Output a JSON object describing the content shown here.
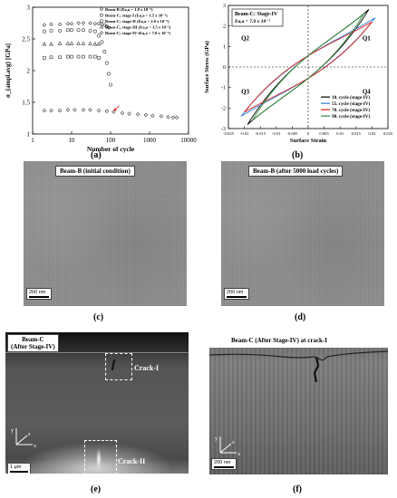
{
  "panels": {
    "a": "(a)",
    "b": "(b)",
    "c": "(c)",
    "d": "(d)",
    "e": "(e)",
    "f": "(f)"
  },
  "chart_data": [
    {
      "type": "scatter",
      "ylabel": "σ_{ampl.avg} [GPa]",
      "xlabel": "Number of cycle",
      "xscale": "log",
      "xlim": [
        1,
        10000
      ],
      "ylim": [
        1,
        3
      ],
      "xticks": [
        "1",
        "10",
        "100",
        "1000",
        "10000"
      ],
      "yticks": [
        "1",
        "1.5",
        "2",
        "2.5",
        "3"
      ],
      "legend_position": "top-right",
      "series": [
        {
          "name": "Beam-B (Ea,a = 1.8 x 10⁻³)",
          "marker": "diamond",
          "x": [
            2,
            3,
            5,
            8,
            12,
            20,
            30,
            50,
            80,
            120,
            200,
            300,
            500,
            800,
            1200,
            2000,
            3000,
            4000,
            5000
          ],
          "y": [
            1.37,
            1.37,
            1.37,
            1.38,
            1.38,
            1.38,
            1.38,
            1.37,
            1.36,
            1.35,
            1.33,
            1.32,
            1.31,
            1.3,
            1.29,
            1.28,
            1.27,
            1.26,
            1.26
          ]
        },
        {
          "name": "Beam-C; stage-I (Ea,a = 1.5 x 10⁻³)",
          "marker": "circle",
          "x": [
            2,
            3,
            5,
            8,
            10,
            15,
            20,
            30,
            40,
            50,
            60,
            70,
            80,
            90,
            100
          ],
          "y": [
            2.62,
            2.63,
            2.63,
            2.64,
            2.64,
            2.64,
            2.64,
            2.63,
            2.62,
            2.55,
            2.45,
            2.3,
            2.12,
            1.95,
            1.78
          ]
        },
        {
          "name": "Beam-C; stage-II (Ea,a = 2.0 x 10⁻³)",
          "marker": "square",
          "x": [
            2,
            3,
            5,
            8,
            10,
            15,
            20,
            30,
            40,
            50
          ],
          "y": [
            2.2,
            2.21,
            2.21,
            2.22,
            2.22,
            2.22,
            2.22,
            2.22,
            2.22,
            2.2
          ]
        },
        {
          "name": "Beam-C; stage-III (Ea,a = 3.5 x 10⁻³)",
          "marker": "triangle",
          "x": [
            2,
            3,
            5,
            8,
            10,
            15,
            20,
            30,
            40,
            50
          ],
          "y": [
            2.42,
            2.42,
            2.43,
            2.43,
            2.43,
            2.43,
            2.43,
            2.43,
            2.42,
            2.42
          ]
        },
        {
          "name": "Beam-C; stage-IV (Ea,a = 7.0 x 10⁻³)",
          "marker": "diamond",
          "x": [
            2,
            3,
            5,
            8,
            10,
            15,
            20,
            30,
            40,
            50,
            60,
            70,
            80,
            90
          ],
          "y": [
            2.72,
            2.73,
            2.73,
            2.74,
            2.74,
            2.75,
            2.75,
            2.75,
            2.74,
            2.74,
            2.73,
            2.72,
            2.7,
            2.68
          ]
        }
      ]
    },
    {
      "type": "line",
      "title": "Beam-C: Stage-IV",
      "annotation": "Ea,a = 7.0 x 10⁻³",
      "xlabel": "Surface Strain",
      "ylabel": "Surface Stress (GPa)",
      "xlim": [
        -0.025,
        0.025
      ],
      "ylim": [
        -3,
        3
      ],
      "xticks": [
        "-0.025",
        "-0.02",
        "-0.015",
        "-0.01",
        "-0.005",
        "0",
        "0.005",
        "0.01",
        "0.015",
        "0.02",
        "0.025"
      ],
      "yticks": [
        "-3",
        "-2",
        "-1",
        "0",
        "1",
        "2",
        "3"
      ],
      "quadrants": [
        "Q1",
        "Q2",
        "Q3",
        "Q4"
      ],
      "legend_position": "bottom-right",
      "series": [
        {
          "name": "10. cycle (stage-IV)",
          "color": "#000000",
          "amp_x": 0.019,
          "amp_y": 2.8
        },
        {
          "name": "55. cycle (stage-IV)",
          "color": "#2a7bd4",
          "amp_x": 0.021,
          "amp_y": 2.4
        },
        {
          "name": "70. cycle (stage-IV)",
          "color": "#e0201c",
          "amp_x": 0.02,
          "amp_y": 2.2
        },
        {
          "name": "90. cycle (stage-IV)",
          "color": "#2e8b3a",
          "amp_x": 0.0175,
          "amp_y": 2.6
        }
      ]
    }
  ],
  "images": {
    "c_title": "Beam-B (initial condition)",
    "d_title": "Beam-B (after 5000 load cycles)",
    "c_scale": "200 nm",
    "d_scale": "200 nm",
    "e_title_line1": "Beam-C",
    "e_title_line2": "(After Stage-IV)",
    "e_crack1": "Crack-I",
    "e_crack2": "Crack-II",
    "e_scale": "1 µm",
    "f_title": "Beam-C (After Stage-IV) at crack-I",
    "f_scale": "200 nm",
    "axis_x": "x",
    "axis_y": "y",
    "axis_z": "z"
  }
}
